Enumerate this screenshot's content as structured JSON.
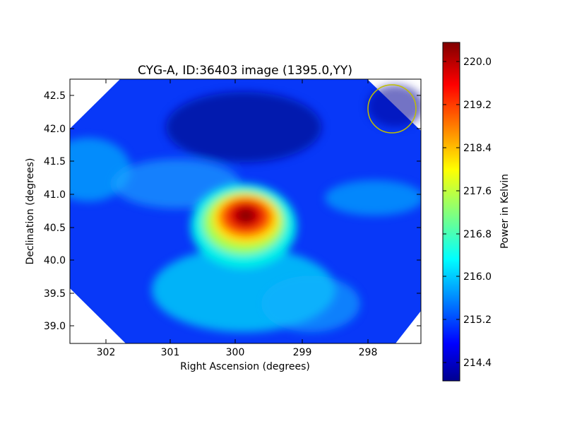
{
  "chart_data": {
    "type": "heatmap",
    "title": "CYG-A, ID:36403 image (1395.0,YY)",
    "xlabel": "Right Ascension (degrees)",
    "ylabel": "Declination (degrees)",
    "xlim": [
      302.55,
      297.2
    ],
    "ylim": [
      38.72,
      42.75
    ],
    "x_ticks": [
      "302",
      "301",
      "300",
      "299",
      "298"
    ],
    "y_ticks": [
      "39.0",
      "39.5",
      "40.0",
      "40.5",
      "41.0",
      "41.5",
      "42.0",
      "42.5"
    ],
    "colorbar": {
      "label": "Power in Kelvin",
      "range": [
        214.0,
        220.3
      ],
      "ticks": [
        "214.4",
        "215.2",
        "216.0",
        "216.8",
        "217.6",
        "218.4",
        "219.2",
        "220.0"
      ],
      "colormap": "jet"
    },
    "peak": {
      "ra": 299.85,
      "dec": 40.68,
      "value": 220.3
    },
    "beam_marker": {
      "ra": 297.65,
      "dec": 42.28,
      "color": "#bfbf00"
    }
  }
}
